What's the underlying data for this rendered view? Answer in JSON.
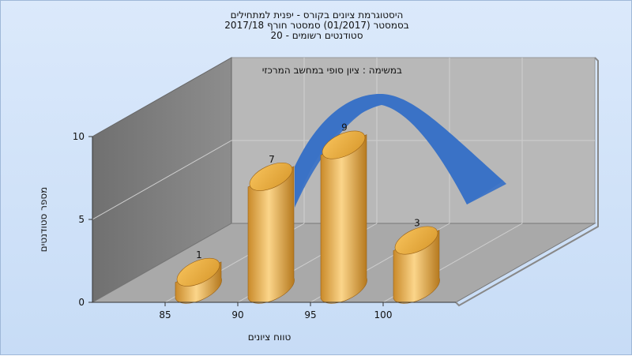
{
  "chart_data": {
    "type": "bar",
    "title": [
      "היסטוגרמת ציונים בקורס - יפנית למתחילים",
      "בסמסטר  (01/2017)  סמסטר חורף  2017/18",
      "סטודנטים רשומים - 20"
    ],
    "annotation": "במשימה : ציון סופי במחשב המרכזי",
    "xlabel": "טווח ציונים",
    "ylabel": "מספר סטודנטים",
    "categories": [
      "85",
      "90",
      "95",
      "100"
    ],
    "values": [
      1,
      7,
      9,
      3
    ],
    "ylim": [
      0,
      10
    ],
    "yticks": [
      "0",
      "5",
      "10"
    ],
    "bar_color": "#e8a93c",
    "curve_color": "#3a72c6",
    "grid": true
  }
}
